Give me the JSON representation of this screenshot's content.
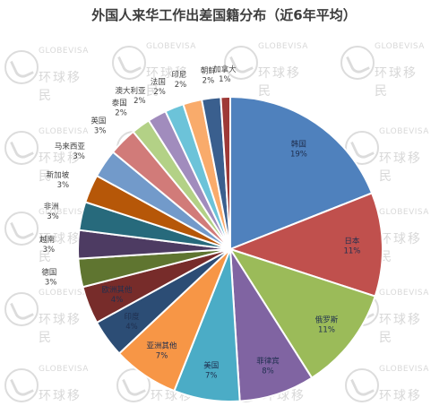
{
  "chart_data": {
    "type": "pie",
    "title": "外国人来华工作出差国籍分布（近6年平均）",
    "start": "clockwise-from-top",
    "slices": [
      {
        "name": "韩国",
        "label": "19%",
        "value": 19,
        "color": "#4f81bd"
      },
      {
        "name": "日本",
        "label": "11%",
        "value": 11,
        "color": "#c0504d"
      },
      {
        "name": "俄罗斯",
        "label": "11%",
        "value": 11,
        "color": "#9bbb59"
      },
      {
        "name": "菲律宾",
        "label": "8%",
        "value": 8,
        "color": "#8064a2"
      },
      {
        "name": "美国",
        "label": "7%",
        "value": 7,
        "color": "#4bacc6"
      },
      {
        "name": "亚洲其他",
        "label": "7%",
        "value": 7,
        "color": "#f79646"
      },
      {
        "name": "印度",
        "label": "4%",
        "value": 4,
        "color": "#2c4d75"
      },
      {
        "name": "欧洲其他",
        "label": "4%",
        "value": 4,
        "color": "#772c2a"
      },
      {
        "name": "德国",
        "label": "3%",
        "value": 3,
        "color": "#5f7530"
      },
      {
        "name": "越南",
        "label": "3%",
        "value": 3,
        "color": "#4d3b62"
      },
      {
        "name": "非洲",
        "label": "3%",
        "value": 3,
        "color": "#276a7c"
      },
      {
        "name": "新加坡",
        "label": "3%",
        "value": 3,
        "color": "#b65708"
      },
      {
        "name": "马来西亚",
        "label": "3%",
        "value": 3,
        "color": "#729aca"
      },
      {
        "name": "英国",
        "label": "3%",
        "value": 3,
        "color": "#d17b79"
      },
      {
        "name": "泰国",
        "label": "2%",
        "value": 2,
        "color": "#b3d186"
      },
      {
        "name": "澳大利亚",
        "label": "2%",
        "value": 2,
        "color": "#a18cbd"
      },
      {
        "name": "法国",
        "label": "2%",
        "value": 2,
        "color": "#6cc3d9"
      },
      {
        "name": "印尼",
        "label": "2%",
        "value": 2,
        "color": "#f9ab6b"
      },
      {
        "name": "朝鲜",
        "label": "2%",
        "value": 2,
        "color": "#3a5f8e"
      },
      {
        "name": "加拿大",
        "label": "1%",
        "value": 1,
        "color": "#9e3a37"
      }
    ]
  },
  "watermark": {
    "text_en": "GLOBEVISA",
    "text_zh": "环球移民",
    "color": "#cfcfcf"
  }
}
